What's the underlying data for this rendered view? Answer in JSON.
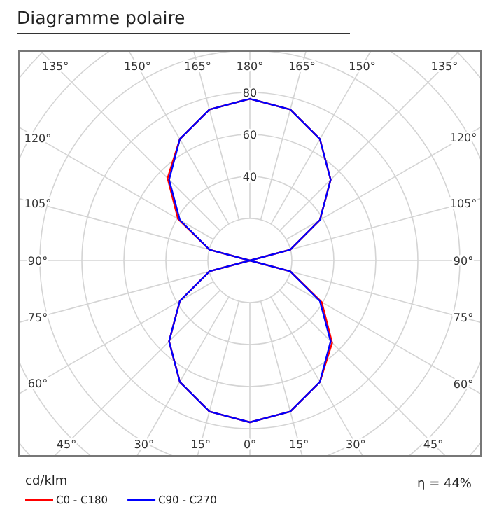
{
  "chart_data": {
    "type": "radar",
    "title": "Diagramme polaire",
    "ylabel": "cd/klm",
    "annotations": [
      "η = 44%"
    ],
    "categories": [
      "180°",
      "165°",
      "150°",
      "135°",
      "120°",
      "105°",
      "90°",
      "75°",
      "60°",
      "45°",
      "30°",
      "15°",
      "0°",
      "15°",
      "30°",
      "45°",
      "60°",
      "75°",
      "90°",
      "105°",
      "120°",
      "135°",
      "150°",
      "165°"
    ],
    "series": [
      {
        "name": "C0 - C180",
        "color": "#ff0000",
        "values": [
          77,
          74.4,
          66.7,
          54.4,
          38.5,
          19.9,
          0,
          19.9,
          39.5,
          55.4,
          66.7,
          74.4,
          77,
          74.4,
          66.7,
          54.4,
          38.5,
          19.9,
          0,
          19.9,
          39.5,
          55.4,
          66.7,
          74.4
        ]
      },
      {
        "name": "C90 - C270",
        "color": "#0000ff",
        "values": [
          77,
          74.4,
          66.7,
          54.4,
          38.5,
          19.9,
          0,
          19.9,
          38.5,
          54.4,
          66.7,
          74.4,
          77,
          74.4,
          66.7,
          54.4,
          38.5,
          19.9,
          0,
          19.9,
          38.5,
          54.4,
          66.7,
          74.4
        ]
      }
    ],
    "ylim": [
      0,
      140
    ],
    "yticks": [
      40,
      60,
      80
    ],
    "grid": true,
    "legend": "bottom left"
  }
}
